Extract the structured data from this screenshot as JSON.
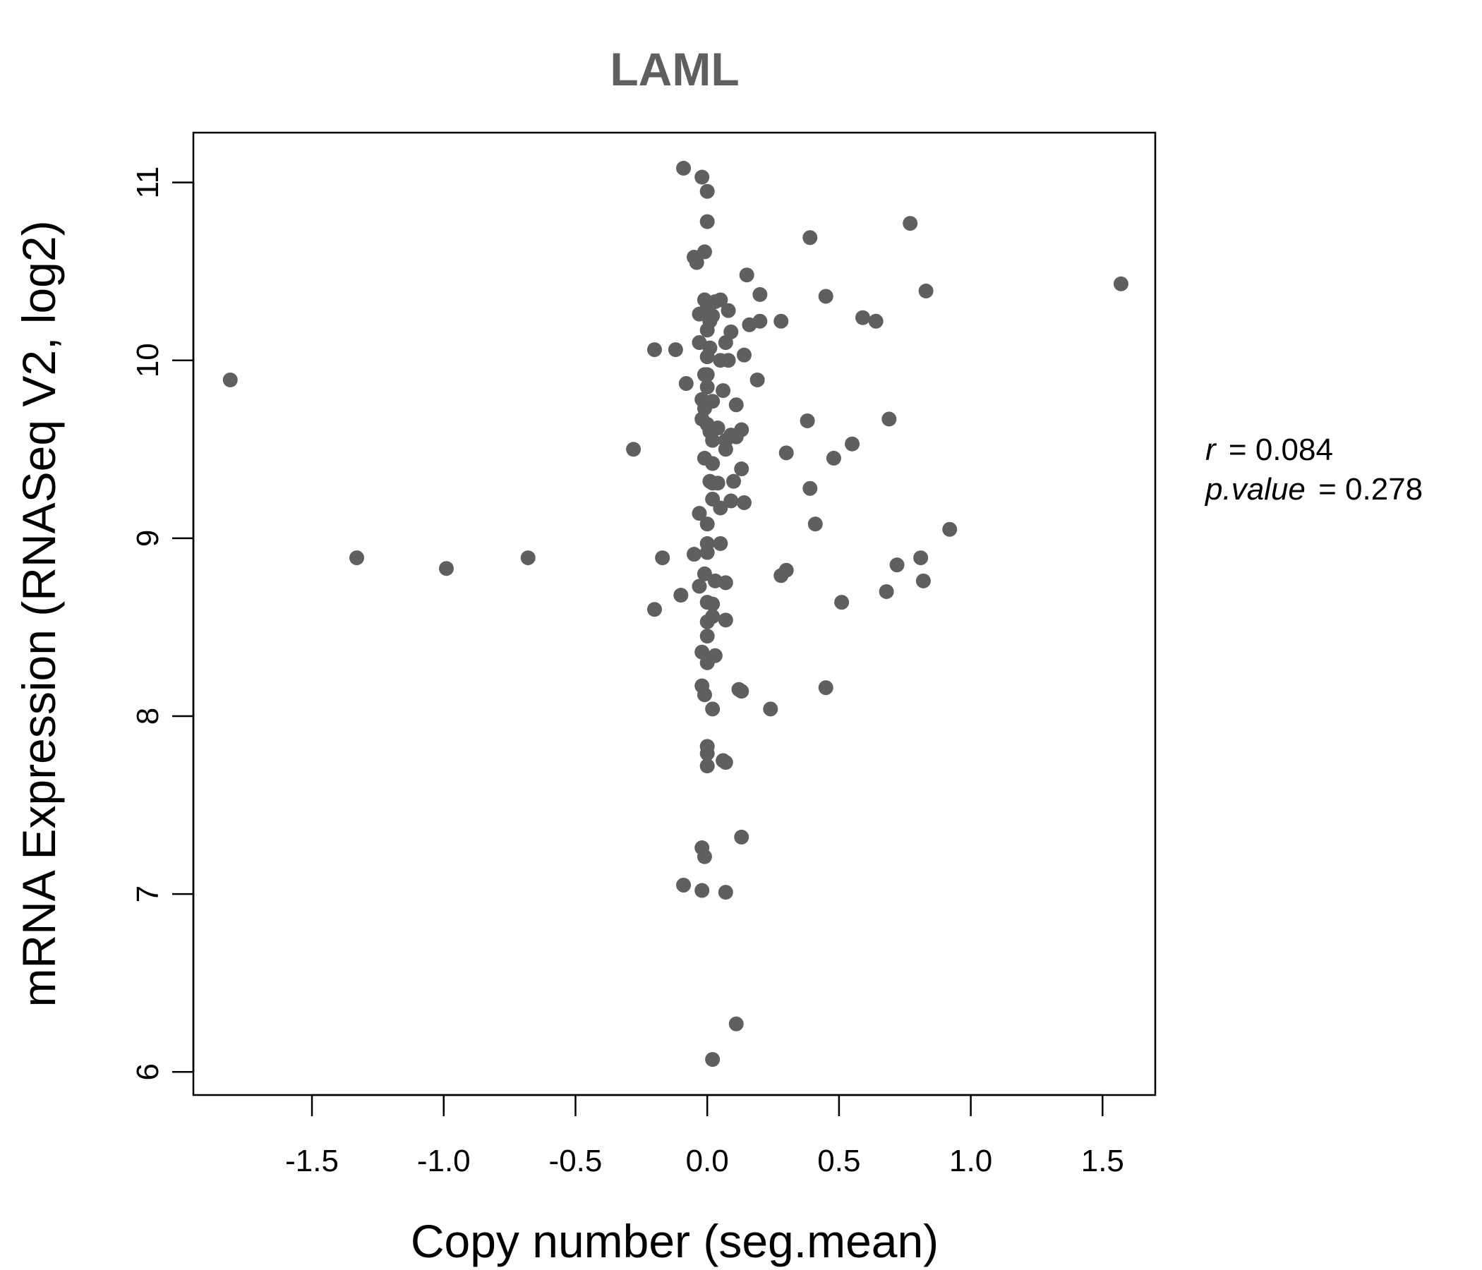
{
  "chart_data": {
    "type": "scatter",
    "title": "LAML",
    "xlabel": "Copy number (seg.mean)",
    "ylabel": "mRNA Expression (RNASeq V2, log2)",
    "xlim": [
      -1.95,
      1.7
    ],
    "ylim": [
      5.87,
      11.28
    ],
    "xticks": [
      -1.5,
      -1.0,
      -0.5,
      0.0,
      0.5,
      1.0,
      1.5
    ],
    "xtick_labels": [
      "-1.5",
      "-1.0",
      "-0.5",
      "0.0",
      "0.5",
      "1.0",
      "1.5"
    ],
    "yticks": [
      6,
      7,
      8,
      9,
      10,
      11
    ],
    "ytick_labels": [
      "6",
      "7",
      "8",
      "9",
      "10",
      "11"
    ],
    "grid": false,
    "point_color": "#5f5f5f",
    "stats": {
      "r_name": "r",
      "r_value": "0.084",
      "p_name": "p.value",
      "p_value": "0.278"
    },
    "series": [
      {
        "x": [
          -0.09,
          -0.02,
          0.0,
          0.0,
          -0.05,
          -0.04,
          -0.01,
          0.15,
          0.2,
          0.39,
          0.77,
          1.57,
          -1.81,
          -0.01,
          0.0,
          0.03,
          0.05,
          0.08,
          0.0,
          0.01,
          -0.03,
          0.02,
          0.16,
          0.2,
          0.28,
          0.45,
          0.59,
          0.64,
          0.83,
          -0.2,
          -0.12,
          -0.03,
          0.09,
          0.0,
          0.01,
          0.07,
          0.0,
          0.14,
          0.05,
          0.08,
          0.0,
          -0.01,
          -0.08,
          0.19,
          0.0,
          0.06,
          -0.02,
          0.02,
          0.11,
          -0.01,
          -0.02,
          0.38,
          0.69,
          0.0,
          0.01,
          0.04,
          0.09,
          0.13,
          0.02,
          0.07,
          0.11,
          0.55,
          -0.28,
          -0.01,
          0.07,
          0.02,
          0.3,
          0.48,
          0.01,
          0.13,
          0.02,
          0.04,
          0.1,
          0.39,
          0.02,
          0.09,
          0.14,
          0.05,
          -0.03,
          0.0,
          0.41,
          0.92,
          0.05,
          0.0,
          0.0,
          -0.05,
          -0.17,
          -1.33,
          -0.68,
          -0.99,
          0.72,
          0.81,
          0.3,
          0.28,
          -0.01,
          0.03,
          0.07,
          -0.03,
          0.82,
          0.68,
          -0.1,
          0.02,
          0.51,
          0.0,
          -0.2,
          0.02,
          0.07,
          0.0,
          0.0,
          -0.02,
          0.03,
          0.0,
          -0.02,
          0.12,
          0.13,
          0.45,
          -0.01,
          0.02,
          0.24,
          0.0,
          0.0,
          0.06,
          0.07,
          0.0,
          0.13,
          -0.02,
          -0.01,
          -0.09,
          -0.02,
          0.07,
          0.11,
          0.02
        ],
        "y": [
          11.08,
          11.03,
          10.95,
          10.78,
          10.58,
          10.55,
          10.61,
          10.48,
          10.37,
          10.69,
          10.77,
          10.43,
          9.89,
          10.34,
          10.3,
          10.33,
          10.34,
          10.28,
          10.26,
          10.22,
          10.26,
          10.25,
          10.2,
          10.22,
          10.22,
          10.36,
          10.24,
          10.22,
          10.39,
          10.06,
          10.06,
          10.1,
          10.16,
          10.17,
          10.07,
          10.1,
          10.02,
          10.03,
          10.0,
          10.0,
          9.92,
          9.92,
          9.87,
          9.89,
          9.85,
          9.83,
          9.78,
          9.77,
          9.75,
          9.73,
          9.67,
          9.66,
          9.67,
          9.64,
          9.6,
          9.62,
          9.58,
          9.61,
          9.55,
          9.55,
          9.57,
          9.53,
          9.5,
          9.45,
          9.5,
          9.42,
          9.48,
          9.45,
          9.32,
          9.39,
          9.31,
          9.31,
          9.32,
          9.28,
          9.22,
          9.21,
          9.2,
          9.17,
          9.14,
          9.08,
          9.08,
          9.05,
          8.97,
          8.97,
          8.92,
          8.91,
          8.89,
          8.89,
          8.89,
          8.83,
          8.85,
          8.89,
          8.82,
          8.79,
          8.8,
          8.76,
          8.75,
          8.73,
          8.76,
          8.7,
          8.68,
          8.63,
          8.64,
          8.64,
          8.6,
          8.56,
          8.54,
          8.53,
          8.45,
          8.36,
          8.34,
          8.3,
          8.17,
          8.15,
          8.14,
          8.16,
          8.12,
          8.04,
          8.04,
          7.83,
          7.79,
          7.75,
          7.74,
          7.72,
          7.32,
          7.26,
          7.21,
          7.05,
          7.02,
          7.01,
          6.27,
          6.07
        ]
      }
    ]
  }
}
